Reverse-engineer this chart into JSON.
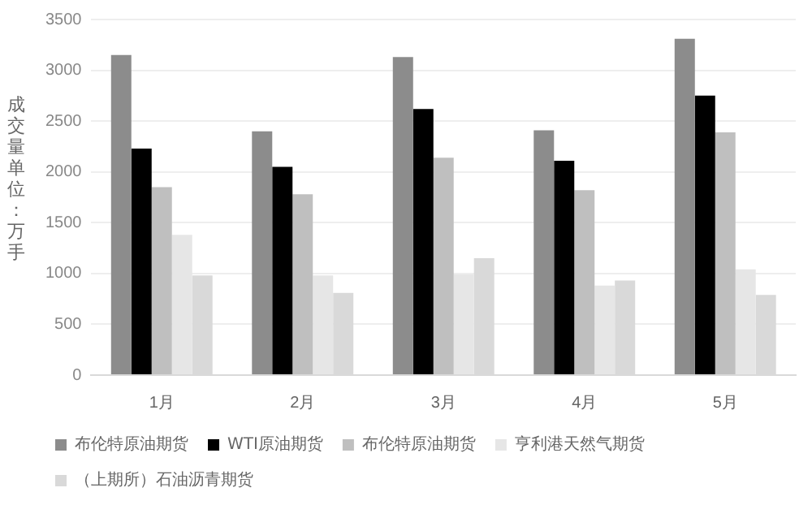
{
  "chart_data": {
    "type": "bar",
    "ylabel": "成交量单位：万手",
    "categories": [
      "1月",
      "2月",
      "3月",
      "4月",
      "5月"
    ],
    "series": [
      {
        "name": "布伦特原油期货",
        "color": "#8c8c8c",
        "values": [
          3150,
          2400,
          3130,
          2410,
          3310
        ]
      },
      {
        "name": "WTI原油期货",
        "color": "#000000",
        "values": [
          2230,
          2050,
          2620,
          2110,
          2750
        ]
      },
      {
        "name": "布伦特原油期货",
        "color": "#bfbfbf",
        "values": [
          1850,
          1780,
          2140,
          1820,
          2390
        ]
      },
      {
        "name": "亨利港天然气期货",
        "color": "#e6e6e6",
        "values": [
          1380,
          980,
          990,
          880,
          1040
        ]
      },
      {
        "name": "（上期所）石油沥青期货",
        "color": "#d9d9d9",
        "values": [
          980,
          810,
          1150,
          930,
          790
        ]
      }
    ],
    "ylim": [
      0,
      3500
    ],
    "yticks": [
      0,
      500,
      1000,
      1500,
      2000,
      2500,
      3000,
      3500
    ],
    "grid": "y",
    "legend": "bottom"
  }
}
